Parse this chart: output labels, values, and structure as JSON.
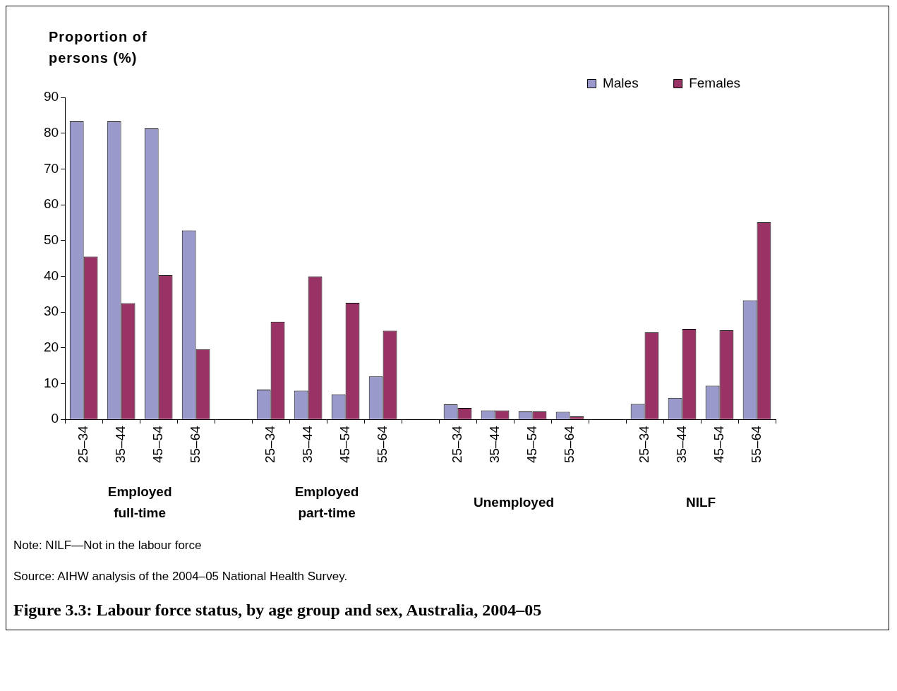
{
  "chart_data": {
    "type": "bar",
    "title": "Figure 3.3: Labour force status, by age group and sex, Australia, 2004–05",
    "ylabel": "Proportion of persons (%)",
    "categories": [
      "25–34",
      "35–44",
      "45–54",
      "55–64",
      null,
      "25–34",
      "35–44",
      "45–54",
      "55–64",
      null,
      "25–34",
      "35–44",
      "45–54",
      "55–64",
      null,
      "25–34",
      "35–44",
      "45–54",
      "55–64"
    ],
    "series": [
      {
        "name": "Males",
        "color": "#9999cc",
        "values": [
          83.3,
          83.3,
          81.3,
          52.8,
          null,
          8.3,
          8,
          7,
          12,
          null,
          4.2,
          2.5,
          2.2,
          2.1,
          null,
          4.3,
          6,
          9.4,
          33.3
        ]
      },
      {
        "name": "Females",
        "color": "#993366",
        "values": [
          45.5,
          32.5,
          40.3,
          19.6,
          null,
          27.3,
          40,
          32.6,
          24.8,
          null,
          3.2,
          2.5,
          2.2,
          0.8,
          null,
          24.3,
          25.3,
          24.9,
          55.1
        ]
      }
    ],
    "ylim": [
      0,
      90
    ],
    "yticks": [
      0,
      10,
      20,
      30,
      40,
      50,
      60,
      70,
      80,
      90
    ],
    "grid": false,
    "legend": "top right",
    "annotations": [
      "Employed full-time",
      "Employed part-time",
      "Unemployed",
      "NILF",
      "Note: NILF—Not in the labour force",
      "Source: AIHW analysis of the 2004–05 National Health Survey."
    ]
  }
}
